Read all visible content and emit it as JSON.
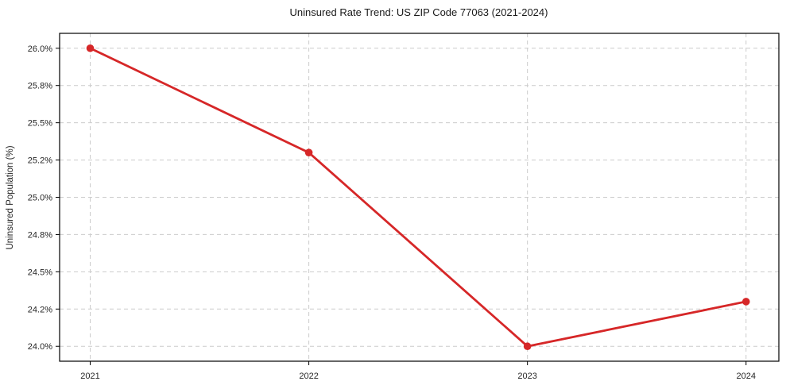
{
  "chart_data": {
    "type": "line",
    "title": "Uninsured Rate Trend: US ZIP Code 77063 (2021-2024)",
    "xlabel": "",
    "ylabel": "Uninsured Population (%)",
    "x": [
      2021,
      2022,
      2023,
      2024
    ],
    "series": [
      {
        "name": "uninsured-rate",
        "values": [
          26.0,
          25.3,
          24.0,
          24.3
        ],
        "color": "#d62728",
        "marker": "circle"
      }
    ],
    "x_ticks": [
      2021,
      2022,
      2023,
      2024
    ],
    "x_tick_labels": [
      "2021",
      "2022",
      "2023",
      "2024"
    ],
    "y_ticks": [
      24.0,
      24.25,
      24.5,
      24.75,
      25.0,
      25.25,
      25.5,
      25.75,
      26.0
    ],
    "y_tick_labels": [
      "24.0%",
      "24.2%",
      "24.5%",
      "24.8%",
      "25.0%",
      "25.2%",
      "25.5%",
      "25.8%",
      "26.0%"
    ],
    "xlim": [
      2020.86,
      2024.15
    ],
    "ylim": [
      23.9,
      26.1
    ],
    "grid": true,
    "grid_style": "dashed",
    "legend": "none",
    "colors": {
      "line": "#d62728",
      "marker": "#d62728",
      "grid": "#cccccc",
      "spine": "#000000",
      "text": "#262626",
      "background": "#ffffff"
    }
  }
}
